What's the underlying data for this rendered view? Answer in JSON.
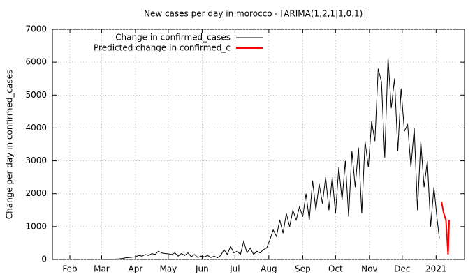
{
  "chart_data": {
    "type": "line",
    "title": "New cases per day in morocco -  [ARIMA(1,2,1|1,0,1)]",
    "y_label": "Change per day in confirmed_cases",
    "xlim": [
      16,
      393
    ],
    "ylim": [
      0,
      7000
    ],
    "yticks": [
      0,
      1000,
      2000,
      3000,
      4000,
      5000,
      6000,
      7000
    ],
    "xticks": [
      {
        "value": 32,
        "label": "Feb"
      },
      {
        "value": 61,
        "label": "Mar"
      },
      {
        "value": 92,
        "label": "Apr"
      },
      {
        "value": 122,
        "label": "May"
      },
      {
        "value": 153,
        "label": "Jun"
      },
      {
        "value": 183,
        "label": "Jul"
      },
      {
        "value": 214,
        "label": "Aug"
      },
      {
        "value": 245,
        "label": "Sep"
      },
      {
        "value": 275,
        "label": "Oct"
      },
      {
        "value": 306,
        "label": "Nov"
      },
      {
        "value": 336,
        "label": "Dec"
      },
      {
        "value": 367,
        "label": "2021"
      }
    ],
    "grid": true,
    "legend": "top-left",
    "series": [
      {
        "name": "Change in confirmed_cases",
        "color": "#000000",
        "x": [
          62,
          65,
          68,
          71,
          74,
          77,
          80,
          83,
          86,
          89,
          92,
          95,
          98,
          101,
          104,
          107,
          110,
          113,
          116,
          119,
          122,
          125,
          128,
          131,
          134,
          137,
          140,
          143,
          146,
          149,
          152,
          155,
          158,
          161,
          164,
          167,
          170,
          173,
          176,
          179,
          182,
          185,
          188,
          191,
          194,
          197,
          200,
          203,
          206,
          209,
          212,
          215,
          218,
          221,
          224,
          227,
          230,
          233,
          236,
          239,
          242,
          245,
          248,
          251,
          254,
          257,
          260,
          263,
          266,
          269,
          272,
          275,
          278,
          281,
          284,
          287,
          290,
          293,
          296,
          299,
          302,
          305,
          308,
          311,
          314,
          317,
          320,
          323,
          326,
          329,
          332,
          335,
          338,
          341,
          344,
          347,
          350,
          353,
          356,
          359,
          362,
          365,
          368,
          370
        ],
        "values": [
          0,
          0,
          0,
          5,
          10,
          20,
          30,
          50,
          60,
          70,
          80,
          120,
          100,
          150,
          120,
          180,
          150,
          250,
          200,
          180,
          170,
          150,
          200,
          100,
          180,
          120,
          200,
          80,
          150,
          60,
          100,
          80,
          120,
          60,
          100,
          50,
          120,
          300,
          150,
          400,
          200,
          250,
          150,
          550,
          200,
          350,
          150,
          250,
          200,
          300,
          350,
          600,
          900,
          700,
          1200,
          800,
          1400,
          1000,
          1500,
          1200,
          1600,
          1300,
          2000,
          1200,
          2400,
          1500,
          2300,
          1700,
          2500,
          1500,
          2500,
          1400,
          2800,
          1800,
          3000,
          1300,
          3300,
          2200,
          3400,
          1400,
          3600,
          2800,
          4200,
          3600,
          5800,
          5400,
          3100,
          6150,
          4600,
          5500,
          3300,
          5200,
          3900,
          4100,
          2800,
          4000,
          1500,
          3600,
          2200,
          3000,
          1000,
          2200,
          1200,
          650
        ]
      },
      {
        "name": "Predicted change in confirmed_c",
        "color": "#ff0000",
        "x": [
          372,
          374,
          376,
          378,
          379
        ],
        "values": [
          1750,
          1400,
          1200,
          150,
          1200
        ]
      }
    ]
  }
}
